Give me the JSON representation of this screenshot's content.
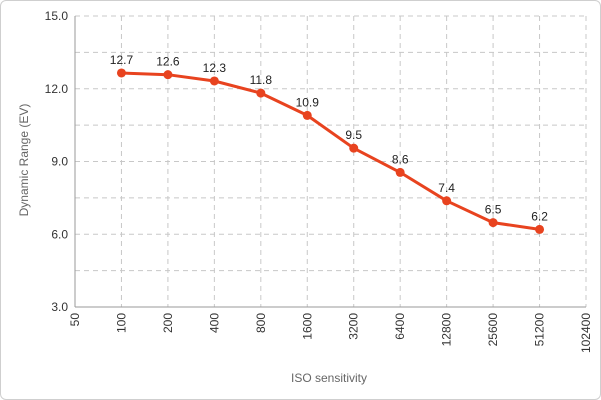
{
  "chart_data": {
    "type": "line",
    "title": "",
    "xlabel": "ISO sensitivity",
    "ylabel": "Dynamic Range (EV)",
    "x_ticks": [
      "50",
      "100",
      "200",
      "400",
      "800",
      "1600",
      "3200",
      "6400",
      "12800",
      "25600",
      "51200",
      "102400"
    ],
    "y_ticks": [
      "3.0",
      "6.0",
      "9.0",
      "12.0",
      "15.0"
    ],
    "ylim": [
      3,
      15
    ],
    "x_scale": "log2",
    "grid": true,
    "series": [
      {
        "color": "#e8431f",
        "x": [
          100,
          200,
          400,
          800,
          1600,
          3200,
          6400,
          12800,
          25600,
          51200
        ],
        "values": [
          12.65,
          12.58,
          12.32,
          11.82,
          10.9,
          9.55,
          8.55,
          7.38,
          6.48,
          6.2
        ],
        "labels": [
          "12.7",
          "12.6",
          "12.3",
          "11.8",
          "10.9",
          "9.5",
          "8.6",
          "7.4",
          "6.5",
          "6.2"
        ]
      }
    ]
  }
}
